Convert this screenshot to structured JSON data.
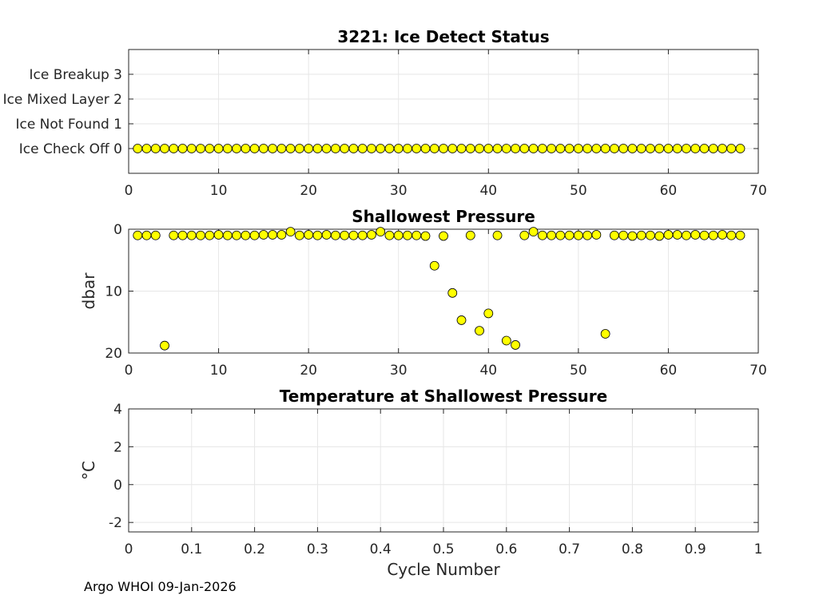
{
  "footer": "Argo WHOI 09-Jan-2026",
  "chart_data": [
    {
      "type": "scatter",
      "title": "3221: Ice Detect Status",
      "xlabel": "",
      "ylabel": "",
      "xlim": [
        0,
        70
      ],
      "ylim": [
        -1,
        4
      ],
      "xticks": [
        "0",
        "10",
        "20",
        "30",
        "40",
        "50",
        "60",
        "70"
      ],
      "yticks": [
        {
          "value": 0,
          "label": "Ice Check Off 0"
        },
        {
          "value": 1,
          "label": "Ice Not Found 1"
        },
        {
          "value": 2,
          "label": "Ice Mixed Layer 2"
        },
        {
          "value": 3,
          "label": "Ice Breakup 3"
        }
      ],
      "grid": true,
      "x": [
        1,
        2,
        3,
        4,
        5,
        6,
        7,
        8,
        9,
        10,
        11,
        12,
        13,
        14,
        15,
        16,
        17,
        18,
        19,
        20,
        21,
        22,
        23,
        24,
        25,
        26,
        27,
        28,
        29,
        30,
        31,
        32,
        33,
        34,
        35,
        36,
        37,
        38,
        39,
        40,
        41,
        42,
        43,
        44,
        45,
        46,
        47,
        48,
        49,
        50,
        51,
        52,
        53,
        54,
        55,
        56,
        57,
        58,
        59,
        60,
        61,
        62,
        63,
        64,
        65,
        66,
        67,
        68
      ],
      "y": [
        0,
        0,
        0,
        0,
        0,
        0,
        0,
        0,
        0,
        0,
        0,
        0,
        0,
        0,
        0,
        0,
        0,
        0,
        0,
        0,
        0,
        0,
        0,
        0,
        0,
        0,
        0,
        0,
        0,
        0,
        0,
        0,
        0,
        0,
        0,
        0,
        0,
        0,
        0,
        0,
        0,
        0,
        0,
        0,
        0,
        0,
        0,
        0,
        0,
        0,
        0,
        0,
        0,
        0,
        0,
        0,
        0,
        0,
        0,
        0,
        0,
        0,
        0,
        0,
        0,
        0,
        0,
        0
      ]
    },
    {
      "type": "scatter",
      "title": "Shallowest Pressure",
      "xlabel": "",
      "ylabel": "dbar",
      "xlim": [
        0,
        70
      ],
      "ylim": [
        20,
        0
      ],
      "xticks": [
        "0",
        "10",
        "20",
        "30",
        "40",
        "50",
        "60",
        "70"
      ],
      "yticks": [
        {
          "value": 0,
          "label": "0"
        },
        {
          "value": 10,
          "label": "10"
        },
        {
          "value": 20,
          "label": "20"
        }
      ],
      "grid": true,
      "x": [
        1,
        2,
        3,
        4,
        5,
        6,
        7,
        8,
        9,
        10,
        11,
        12,
        13,
        14,
        15,
        16,
        17,
        18,
        19,
        20,
        21,
        22,
        23,
        24,
        25,
        26,
        27,
        28,
        29,
        30,
        31,
        32,
        33,
        34,
        35,
        36,
        37,
        38,
        39,
        40,
        41,
        42,
        43,
        44,
        45,
        46,
        47,
        48,
        49,
        50,
        51,
        52,
        53,
        54,
        55,
        56,
        57,
        58,
        59,
        60,
        61,
        62,
        63,
        64,
        65,
        66,
        67,
        68
      ],
      "y": [
        1,
        1,
        1,
        18.8,
        1,
        1,
        1,
        1,
        1,
        0.9,
        1,
        1,
        1,
        1,
        0.9,
        0.9,
        0.9,
        0.4,
        1,
        0.9,
        1,
        0.9,
        1,
        1,
        1,
        1,
        0.9,
        0.4,
        1,
        1,
        1,
        1,
        1.1,
        5.9,
        1.1,
        10.3,
        14.7,
        1,
        16.4,
        13.6,
        1,
        18,
        18.7,
        1,
        0.4,
        1,
        1,
        1,
        1,
        1,
        1,
        0.9,
        16.9,
        1,
        1,
        1.1,
        1,
        1,
        1.1,
        0.9,
        0.9,
        1,
        0.9,
        1,
        1,
        0.9,
        1,
        1
      ]
    },
    {
      "type": "scatter",
      "title": "Temperature at Shallowest Pressure",
      "xlabel": "Cycle Number",
      "ylabel": "°C",
      "xlim": [
        0,
        1
      ],
      "ylim": [
        -2.5,
        4
      ],
      "xticks": [
        "0",
        "0.1",
        "0.2",
        "0.3",
        "0.4",
        "0.5",
        "0.6",
        "0.7",
        "0.8",
        "0.9",
        "1"
      ],
      "yticks": [
        {
          "value": -2,
          "label": "-2"
        },
        {
          "value": 0,
          "label": "0"
        },
        {
          "value": 2,
          "label": "2"
        },
        {
          "value": 4,
          "label": "4"
        }
      ],
      "grid": true,
      "x": [],
      "y": []
    }
  ]
}
